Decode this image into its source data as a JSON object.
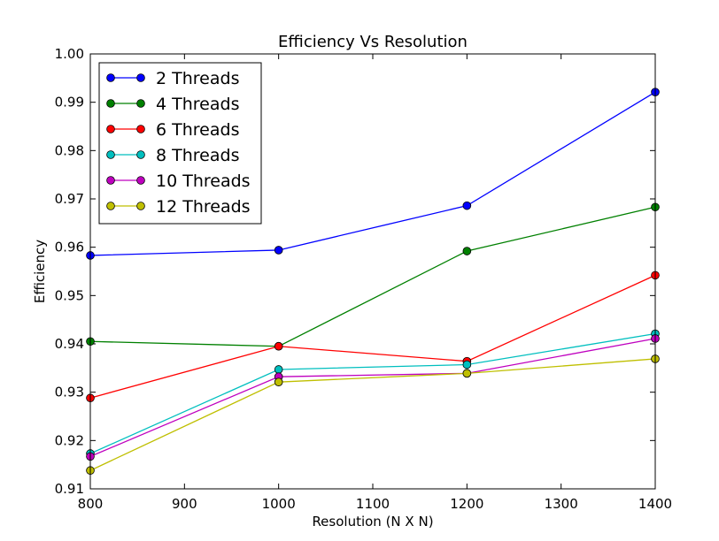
{
  "chart_data": {
    "type": "line",
    "title": "Efficiency Vs Resolution",
    "xlabel": "Resolution (N X N)",
    "ylabel": "Efficiency",
    "x": [
      800,
      1000,
      1200,
      1400
    ],
    "xlim": [
      800,
      1400
    ],
    "ylim": [
      0.91,
      1.0
    ],
    "xticks": [
      "800",
      "900",
      "1000",
      "1100",
      "1200",
      "1300",
      "1400"
    ],
    "yticks": [
      "0.91",
      "0.92",
      "0.93",
      "0.94",
      "0.95",
      "0.96",
      "0.97",
      "0.98",
      "0.99",
      "1.00"
    ],
    "grid": false,
    "legend_position": "top-left",
    "series": [
      {
        "name": "2 Threads",
        "color": "#0000ff",
        "values": [
          0.9583,
          0.9594,
          0.9686,
          0.9921
        ]
      },
      {
        "name": "4 Threads",
        "color": "#008000",
        "values": [
          0.9405,
          0.9395,
          0.9592,
          0.9683
        ]
      },
      {
        "name": "6 Threads",
        "color": "#ff0000",
        "values": [
          0.9288,
          0.9395,
          0.9364,
          0.9542
        ]
      },
      {
        "name": "8 Threads",
        "color": "#00bfbf",
        "values": [
          0.9173,
          0.9347,
          0.9357,
          0.9421
        ]
      },
      {
        "name": "10 Threads",
        "color": "#bf00bf",
        "values": [
          0.9167,
          0.9332,
          0.9339,
          0.9411
        ]
      },
      {
        "name": "12 Threads",
        "color": "#bfbf00",
        "values": [
          0.9138,
          0.9321,
          0.9339,
          0.9369
        ]
      }
    ]
  }
}
